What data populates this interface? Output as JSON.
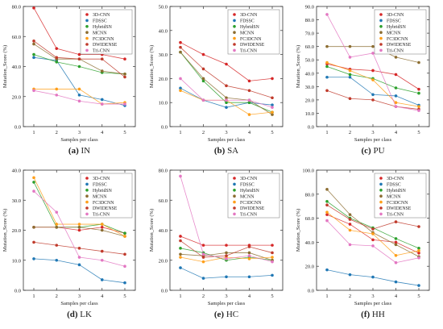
{
  "colors": {
    "3D-CNN": "#d62728",
    "FDSSC": "#1f77b4",
    "HybridSN": "#2ca02c",
    "MCNN": "#8c6d31",
    "FC3DCNN": "#ff9f1a",
    "DWIDENSE": "#c03a2b",
    "Tri-CNN": "#e377c2"
  },
  "legend_labels": [
    "3D-CNN",
    "FDSSC",
    "HybridSN",
    "MCNN",
    "FC3DCNN",
    "DWIDENSE",
    "Tri-CNN"
  ],
  "chart_data": [
    {
      "type": "line",
      "caption_id": "(a)",
      "caption_name": "IN",
      "xlabel": "Samples per class",
      "ylabel": "Mutation_Score (%)",
      "x": [
        1,
        2,
        3,
        4,
        5
      ],
      "ylim": [
        0,
        80
      ],
      "yticks": [
        "0.0",
        "20.0",
        "40.0",
        "60.0",
        "80.0"
      ],
      "series": [
        {
          "name": "3D-CNN",
          "values": [
            79,
            52,
            48,
            48,
            45
          ]
        },
        {
          "name": "FDSSC",
          "values": [
            46,
            44,
            21,
            18,
            14
          ]
        },
        {
          "name": "HybridSN",
          "values": [
            48,
            43,
            40,
            36,
            35
          ]
        },
        {
          "name": "MCNN",
          "values": [
            55,
            45,
            45,
            37,
            35
          ]
        },
        {
          "name": "FC3DCNN",
          "values": [
            25,
            25,
            25,
            15,
            16
          ]
        },
        {
          "name": "DWIDENSE",
          "values": [
            57,
            46,
            45,
            45,
            33
          ]
        },
        {
          "name": "Tri-CNN",
          "values": [
            24,
            21,
            17,
            15,
            15
          ]
        }
      ]
    },
    {
      "type": "line",
      "caption_id": "(b)",
      "caption_name": "SA",
      "xlabel": "Samples per class",
      "ylabel": "Mutation_Score (%)",
      "x": [
        1,
        2,
        3,
        4,
        5
      ],
      "ylim": [
        0,
        50
      ],
      "yticks": [
        "0.0",
        "10.0",
        "20.0",
        "30.0",
        "40.0",
        "50.0"
      ],
      "series": [
        {
          "name": "3D-CNN",
          "values": [
            35,
            30,
            26,
            19,
            20
          ]
        },
        {
          "name": "FDSSC",
          "values": [
            16,
            11,
            8,
            10,
            9
          ]
        },
        {
          "name": "HybridSN",
          "values": [
            31,
            19,
            10,
            10,
            6
          ]
        },
        {
          "name": "MCNN",
          "values": [
            31,
            20,
            12,
            11,
            5
          ]
        },
        {
          "name": "FC3DCNN",
          "values": [
            15,
            11,
            11,
            5,
            6
          ]
        },
        {
          "name": "DWIDENSE",
          "values": [
            33,
            24,
            17,
            15,
            12
          ]
        },
        {
          "name": "Tri-CNN",
          "values": [
            20,
            11,
            11,
            11,
            8
          ]
        }
      ]
    },
    {
      "type": "line",
      "caption_id": "(c)",
      "caption_name": "PU",
      "xlabel": "Samples per class",
      "ylabel": "Mutation_Score (%)",
      "x": [
        1,
        2,
        3,
        4,
        5
      ],
      "ylim": [
        0,
        90
      ],
      "yticks": [
        "0.0",
        "10.0",
        "20.0",
        "30.0",
        "40.0",
        "50.0",
        "60.0",
        "70.0",
        "80.0",
        "90.0"
      ],
      "series": [
        {
          "name": "3D-CNN",
          "values": [
            47,
            43,
            42,
            39,
            28
          ]
        },
        {
          "name": "FDSSC",
          "values": [
            37,
            37,
            24,
            23,
            16
          ]
        },
        {
          "name": "HybridSN",
          "values": [
            45,
            39,
            36,
            29,
            25
          ]
        },
        {
          "name": "MCNN",
          "values": [
            60,
            60,
            60,
            52,
            48
          ]
        },
        {
          "name": "FC3DCNN",
          "values": [
            48,
            42,
            35,
            18,
            15
          ]
        },
        {
          "name": "DWIDENSE",
          "values": [
            27,
            21,
            20,
            15,
            13
          ]
        },
        {
          "name": "Tri-CNN",
          "values": [
            84,
            52,
            55,
            15,
            12
          ]
        }
      ]
    },
    {
      "type": "line",
      "caption_id": "(d)",
      "caption_name": "LK",
      "xlabel": "Samples per class",
      "ylabel": "Mutation_Score (%)",
      "x": [
        1,
        2,
        3,
        4,
        5
      ],
      "ylim": [
        0,
        40
      ],
      "yticks": [
        "0.0",
        "10.0",
        "20.0",
        "30.0",
        "40.0"
      ],
      "series": [
        {
          "name": "3D-CNN",
          "values": [
            21,
            21,
            20,
            21,
            19
          ]
        },
        {
          "name": "FDSSC",
          "values": [
            10.5,
            10,
            8.5,
            3.5,
            2.5
          ]
        },
        {
          "name": "HybridSN",
          "values": [
            36,
            21,
            21,
            22,
            19
          ]
        },
        {
          "name": "MCNN",
          "values": [
            21,
            21,
            21,
            20,
            18
          ]
        },
        {
          "name": "FC3DCNN",
          "values": [
            37.5,
            22,
            22,
            22,
            18
          ]
        },
        {
          "name": "DWIDENSE",
          "values": [
            16,
            15,
            14,
            13,
            12
          ]
        },
        {
          "name": "Tri-CNN",
          "values": [
            33,
            26,
            11,
            10,
            8
          ]
        }
      ]
    },
    {
      "type": "line",
      "caption_id": "(e)",
      "caption_name": "HC",
      "xlabel": "Samples per class",
      "ylabel": "Mutation_Score (%)",
      "x": [
        1,
        2,
        3,
        4,
        5
      ],
      "ylim": [
        0,
        80
      ],
      "yticks": [
        "0.0",
        "20.0",
        "40.0",
        "60.0",
        "80.0"
      ],
      "series": [
        {
          "name": "3D-CNN",
          "values": [
            36,
            30,
            30,
            30,
            30
          ]
        },
        {
          "name": "FDSSC",
          "values": [
            15,
            8,
            9,
            9,
            10
          ]
        },
        {
          "name": "HybridSN",
          "values": [
            28,
            25,
            20,
            22,
            20
          ]
        },
        {
          "name": "MCNN",
          "values": [
            24,
            23,
            25,
            25,
            20
          ]
        },
        {
          "name": "FC3DCNN",
          "values": [
            22,
            19,
            22,
            21,
            22
          ]
        },
        {
          "name": "DWIDENSE",
          "values": [
            33,
            22,
            23,
            29,
            25
          ]
        },
        {
          "name": "Tri-CNN",
          "values": [
            76,
            24,
            21,
            23,
            19
          ]
        }
      ]
    },
    {
      "type": "line",
      "caption_id": "(f)",
      "caption_name": "HH",
      "xlabel": "Samples per class",
      "ylabel": "Mutation_Score (%)",
      "x": [
        1,
        2,
        3,
        4,
        5
      ],
      "ylim": [
        0,
        100
      ],
      "yticks": [
        "0.0",
        "20.0",
        "40.0",
        "60.0",
        "80.0",
        "100.0"
      ],
      "series": [
        {
          "name": "3D-CNN",
          "values": [
            63,
            55,
            42,
            40,
            31
          ]
        },
        {
          "name": "FDSSC",
          "values": [
            17,
            13,
            11,
            7,
            4
          ]
        },
        {
          "name": "HybridSN",
          "values": [
            74,
            60,
            52,
            43,
            35
          ]
        },
        {
          "name": "MCNN",
          "values": [
            84,
            63,
            48,
            38,
            28
          ]
        },
        {
          "name": "FC3DCNN",
          "values": [
            65,
            50,
            47,
            29,
            33
          ]
        },
        {
          "name": "DWIDENSE",
          "values": [
            71,
            59,
            51,
            57,
            53
          ]
        },
        {
          "name": "Tri-CNN",
          "values": [
            58,
            38,
            37,
            23,
            27
          ]
        }
      ]
    }
  ]
}
